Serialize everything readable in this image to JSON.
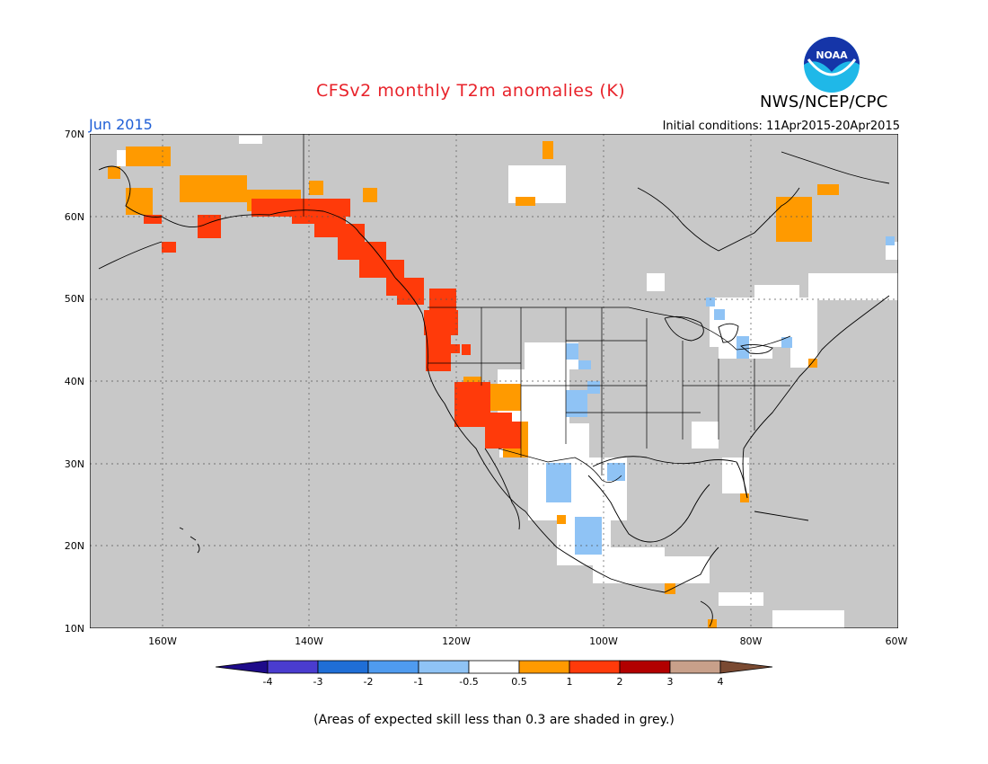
{
  "title": "CFSv2 monthly T2m anomalies (K)",
  "agency": "NWS/NCEP/CPC",
  "logo_text": "NOAA",
  "month": "Jun 2015",
  "initial_conditions": "Initial conditions: 11Apr2015-20Apr2015",
  "lat_labels": [
    "70N",
    "60N",
    "50N",
    "40N",
    "30N",
    "20N",
    "10N"
  ],
  "lon_labels": [
    "160W",
    "140W",
    "120W",
    "100W",
    "80W",
    "60W"
  ],
  "colorbar": {
    "labels": [
      "-4",
      "-3",
      "-2",
      "-1",
      "-0.5",
      "0.5",
      "1",
      "2",
      "3",
      "4"
    ],
    "colors": [
      "#1e0b8a",
      "#4a3ccf",
      "#1f6ed6",
      "#4f9bef",
      "#8fc3f5",
      "#ffffff",
      "#ff9a00",
      "#ff3a0a",
      "#b20000",
      "#c8a08a",
      "#7a4a32"
    ]
  },
  "note": "(Areas of expected skill less than 0.3 are shaded in grey.)",
  "colors": {
    "grey_mask": "#c8c8c8",
    "title": "#e8222a",
    "month": "#1f5fd6"
  }
}
